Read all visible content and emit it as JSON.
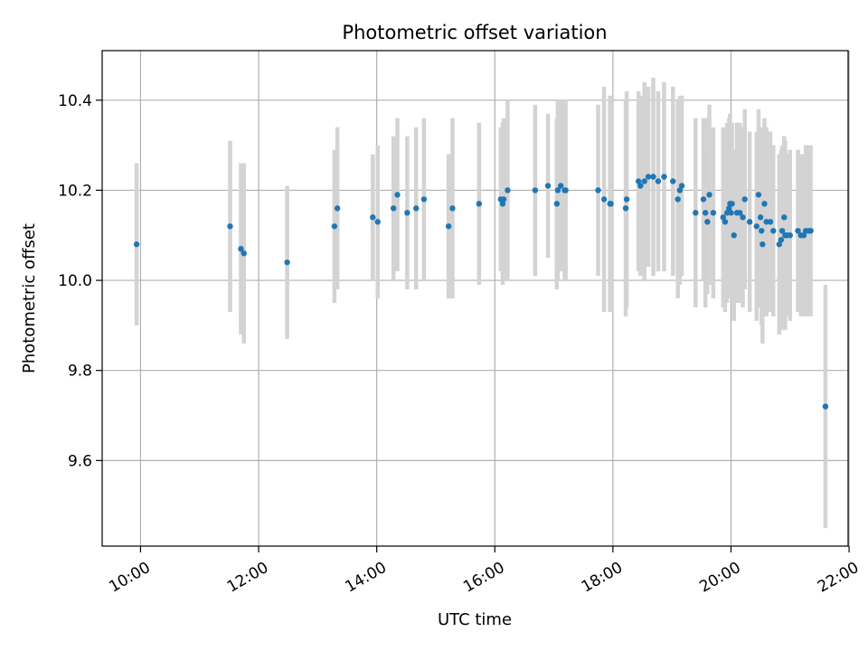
{
  "chart_data": {
    "type": "scatter",
    "title": "Photometric offset variation",
    "xlabel": "UTC time",
    "ylabel": "Photometric offset",
    "x_ticks": [
      "10:00",
      "12:00",
      "14:00",
      "16:00",
      "18:00",
      "20:00",
      "22:00"
    ],
    "y_ticks": [
      "9.6",
      "9.8",
      "10.0",
      "10.2",
      "10.4"
    ],
    "xlim": [
      "09:21",
      "21:59"
    ],
    "ylim": [
      9.41,
      10.51
    ],
    "grid": true,
    "legend": "none",
    "colors": {
      "points": "#1f77b4",
      "errorbars": "#d3d3d3",
      "grid": "#b0b0b0",
      "axes": "#000000"
    },
    "series": [
      {
        "x": [
          "09:56",
          "11:31",
          "11:42",
          "11:45",
          "12:29",
          "13:17",
          "13:20",
          "13:56",
          "14:01",
          "14:17",
          "14:21",
          "14:31",
          "14:40",
          "14:48",
          "15:13",
          "15:17",
          "15:44",
          "16:06",
          "16:08",
          "16:09",
          "16:13",
          "16:41",
          "16:54",
          "17:03",
          "17:04",
          "17:07",
          "17:11",
          "17:12",
          "17:45",
          "17:51",
          "17:57",
          "17:58",
          "18:13",
          "18:14",
          "18:26",
          "18:28",
          "18:32",
          "18:36",
          "18:41",
          "18:46",
          "18:52",
          "19:01",
          "19:06",
          "19:08",
          "19:10",
          "19:24",
          "19:32",
          "19:34",
          "19:36",
          "19:38",
          "19:42",
          "19:52",
          "19:54",
          "19:56",
          "19:58",
          "19:59",
          "20:00",
          "20:01",
          "20:03",
          "20:06",
          "20:09",
          "20:12",
          "20:14",
          "20:19",
          "20:26",
          "20:28",
          "20:30",
          "20:31",
          "20:32",
          "20:34",
          "20:36",
          "20:40",
          "20:43",
          "20:49",
          "20:51",
          "20:52",
          "20:54",
          "20:55",
          "20:57",
          "21:00",
          "21:08",
          "21:11",
          "21:14",
          "21:16",
          "21:19",
          "21:21",
          "21:36"
        ],
        "y": [
          10.08,
          10.12,
          10.07,
          10.06,
          10.04,
          10.12,
          10.16,
          10.14,
          10.13,
          10.16,
          10.19,
          10.15,
          10.16,
          10.18,
          10.12,
          10.16,
          10.17,
          10.18,
          10.17,
          10.18,
          10.2,
          10.2,
          10.21,
          10.17,
          10.2,
          10.21,
          10.2,
          10.2,
          10.2,
          10.18,
          10.17,
          10.17,
          10.16,
          10.18,
          10.22,
          10.21,
          10.22,
          10.23,
          10.23,
          10.22,
          10.23,
          10.22,
          10.18,
          10.2,
          10.21,
          10.15,
          10.18,
          10.15,
          10.13,
          10.19,
          10.15,
          10.14,
          10.13,
          10.15,
          10.16,
          10.17,
          10.15,
          10.17,
          10.1,
          10.15,
          10.15,
          10.14,
          10.18,
          10.13,
          10.12,
          10.19,
          10.14,
          10.11,
          10.08,
          10.17,
          10.13,
          10.13,
          10.11,
          10.08,
          10.09,
          10.11,
          10.14,
          10.1,
          10.1,
          10.1,
          10.11,
          10.1,
          10.1,
          10.11,
          10.11,
          10.11,
          9.72
        ],
        "yerr": [
          0.18,
          0.19,
          0.19,
          0.2,
          0.17,
          0.17,
          0.18,
          0.14,
          0.17,
          0.16,
          0.17,
          0.17,
          0.18,
          0.18,
          0.16,
          0.2,
          0.18,
          0.16,
          0.18,
          0.18,
          0.2,
          0.19,
          0.16,
          0.19,
          0.2,
          0.19,
          0.2,
          0.2,
          0.19,
          0.25,
          0.24,
          0.24,
          0.24,
          0.24,
          0.2,
          0.2,
          0.22,
          0.2,
          0.22,
          0.2,
          0.21,
          0.21,
          0.22,
          0.21,
          0.2,
          0.21,
          0.18,
          0.21,
          0.16,
          0.2,
          0.19,
          0.2,
          0.2,
          0.2,
          0.2,
          0.2,
          0.19,
          0.18,
          0.19,
          0.2,
          0.2,
          0.2,
          0.2,
          0.2,
          0.21,
          0.19,
          0.2,
          0.21,
          0.22,
          0.19,
          0.21,
          0.2,
          0.19,
          0.2,
          0.2,
          0.19,
          0.18,
          0.21,
          0.18,
          0.19,
          0.18,
          0.18,
          0.18,
          0.19,
          0.19,
          0.19,
          0.27
        ]
      }
    ]
  }
}
